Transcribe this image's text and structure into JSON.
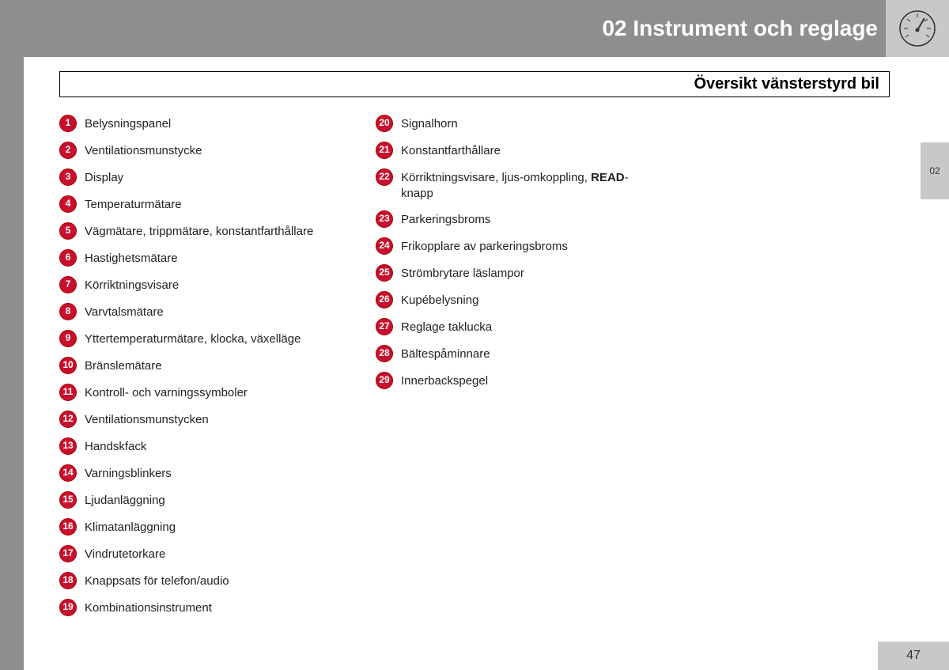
{
  "header": {
    "title": "02 Instrument och reglage",
    "section_title": "Översikt vänsterstyrd bil",
    "tab_label": "02",
    "page_number": "47"
  },
  "colors": {
    "margin_bg": "#8e8e8e",
    "light_box_bg": "#c8c8c8",
    "badge_bg": "#c8102e",
    "badge_border": "#a00824",
    "badge_text": "#ffffff",
    "header_text": "#ffffff",
    "body_text": "#222222",
    "page_bg": "#ffffff"
  },
  "list": {
    "col1": [
      {
        "n": "1",
        "text": "Belysningspanel"
      },
      {
        "n": "2",
        "text": "Ventilationsmunstycke"
      },
      {
        "n": "3",
        "text": "Display"
      },
      {
        "n": "4",
        "text": "Temperaturmätare"
      },
      {
        "n": "5",
        "text": "Vägmätare, trippmätare, konstantfarthållare"
      },
      {
        "n": "6",
        "text": "Hastighetsmätare"
      },
      {
        "n": "7",
        "text": "Körriktningsvisare"
      },
      {
        "n": "8",
        "text": "Varvtalsmätare"
      },
      {
        "n": "9",
        "text": "Yttertemperaturmätare, klocka, växelläge"
      },
      {
        "n": "10",
        "text": "Bränslemätare"
      },
      {
        "n": "11",
        "text": "Kontroll- och varningssymboler"
      },
      {
        "n": "12",
        "text": "Ventilationsmunstycken"
      },
      {
        "n": "13",
        "text": "Handskfack"
      },
      {
        "n": "14",
        "text": "Varningsblinkers"
      },
      {
        "n": "15",
        "text": "Ljudanläggning"
      },
      {
        "n": "16",
        "text": "Klimatanläggning"
      },
      {
        "n": "17",
        "text": "Vindrutetorkare"
      },
      {
        "n": "18",
        "text": "Knappsats för telefon/audio"
      },
      {
        "n": "19",
        "text": "Kombinationsinstrument"
      }
    ],
    "col2": [
      {
        "n": "20",
        "text": "Signalhorn"
      },
      {
        "n": "21",
        "text": "Konstantfarthållare"
      },
      {
        "n": "22",
        "text": "Körriktningsvisare, ljus-omkoppling, ",
        "bold": "READ",
        "suffix": "-knapp"
      },
      {
        "n": "23",
        "text": "Parkeringsbroms"
      },
      {
        "n": "24",
        "text": "Frikopplare av parkeringsbroms"
      },
      {
        "n": "25",
        "text": "Strömbrytare läslampor"
      },
      {
        "n": "26",
        "text": "Kupébelysning"
      },
      {
        "n": "27",
        "text": "Reglage taklucka"
      },
      {
        "n": "28",
        "text": "Bältespåminnare"
      },
      {
        "n": "29",
        "text": "Innerbackspegel"
      }
    ]
  }
}
